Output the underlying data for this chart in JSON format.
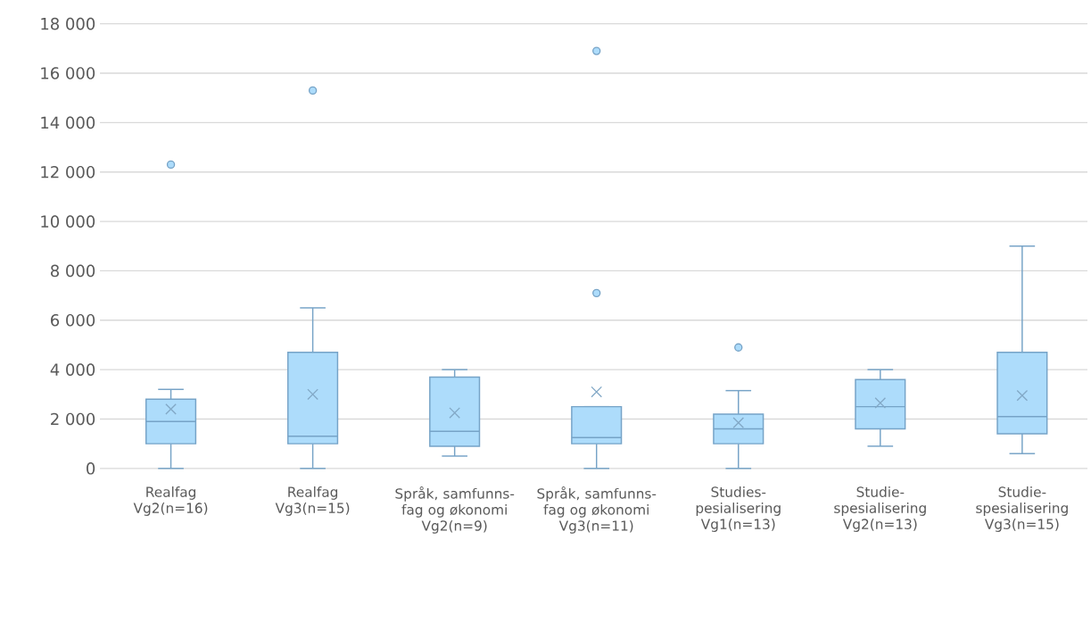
{
  "chart_data": {
    "type": "box",
    "categories": [
      "Realfag Vg2(n=16)",
      "Realfag Vg3(n=15)",
      "Språk, samfunns-fag og økonomi Vg2(n=9)",
      "Språk, samfunns-fag og økonomi Vg3(n=11)",
      "Studies-pesialisering Vg1(n=13)",
      "Studie-spesialisering Vg2(n=13)",
      "Studie-spesialisering Vg3(n=15)"
    ],
    "boxes": [
      {
        "low": 0,
        "q1": 1000,
        "median": 1900,
        "q3": 2800,
        "high": 3200,
        "mean": 2400,
        "outliers": [
          12300
        ]
      },
      {
        "low": 0,
        "q1": 1000,
        "median": 1300,
        "q3": 4700,
        "high": 6500,
        "mean": 3000,
        "outliers": [
          15300
        ]
      },
      {
        "low": 500,
        "q1": 900,
        "median": 1500,
        "q3": 3700,
        "high": 4000,
        "mean": 2250
      },
      {
        "low": 0,
        "q1": 1000,
        "median": 1250,
        "q3": 2500,
        "high": 2500,
        "mean": 3100,
        "outliers": [
          7100,
          16900
        ]
      },
      {
        "low": 0,
        "q1": 1000,
        "median": 1600,
        "q3": 2200,
        "high": 3150,
        "mean": 1850,
        "outliers": [
          4900
        ]
      },
      {
        "low": 900,
        "q1": 1600,
        "median": 2500,
        "q3": 3600,
        "high": 4000,
        "mean": 2650
      },
      {
        "low": 600,
        "q1": 1400,
        "median": 2100,
        "q3": 4700,
        "high": 9000,
        "mean": 2950
      }
    ],
    "color": "#addcfb",
    "ylim": [
      0,
      18000
    ],
    "yticks": [
      {
        "value": 0,
        "label": "0"
      },
      {
        "value": 2000,
        "label": "2 000"
      },
      {
        "value": 4000,
        "label": "4 000"
      },
      {
        "value": 6000,
        "label": "6 000"
      },
      {
        "value": 8000,
        "label": "8 000"
      },
      {
        "value": 10000,
        "label": "10 000"
      },
      {
        "value": 12000,
        "label": "12 000"
      },
      {
        "value": 14000,
        "label": "14 000"
      },
      {
        "value": 16000,
        "label": "16 000"
      },
      {
        "value": 18000,
        "label": "18 000"
      }
    ],
    "grid": "y"
  }
}
